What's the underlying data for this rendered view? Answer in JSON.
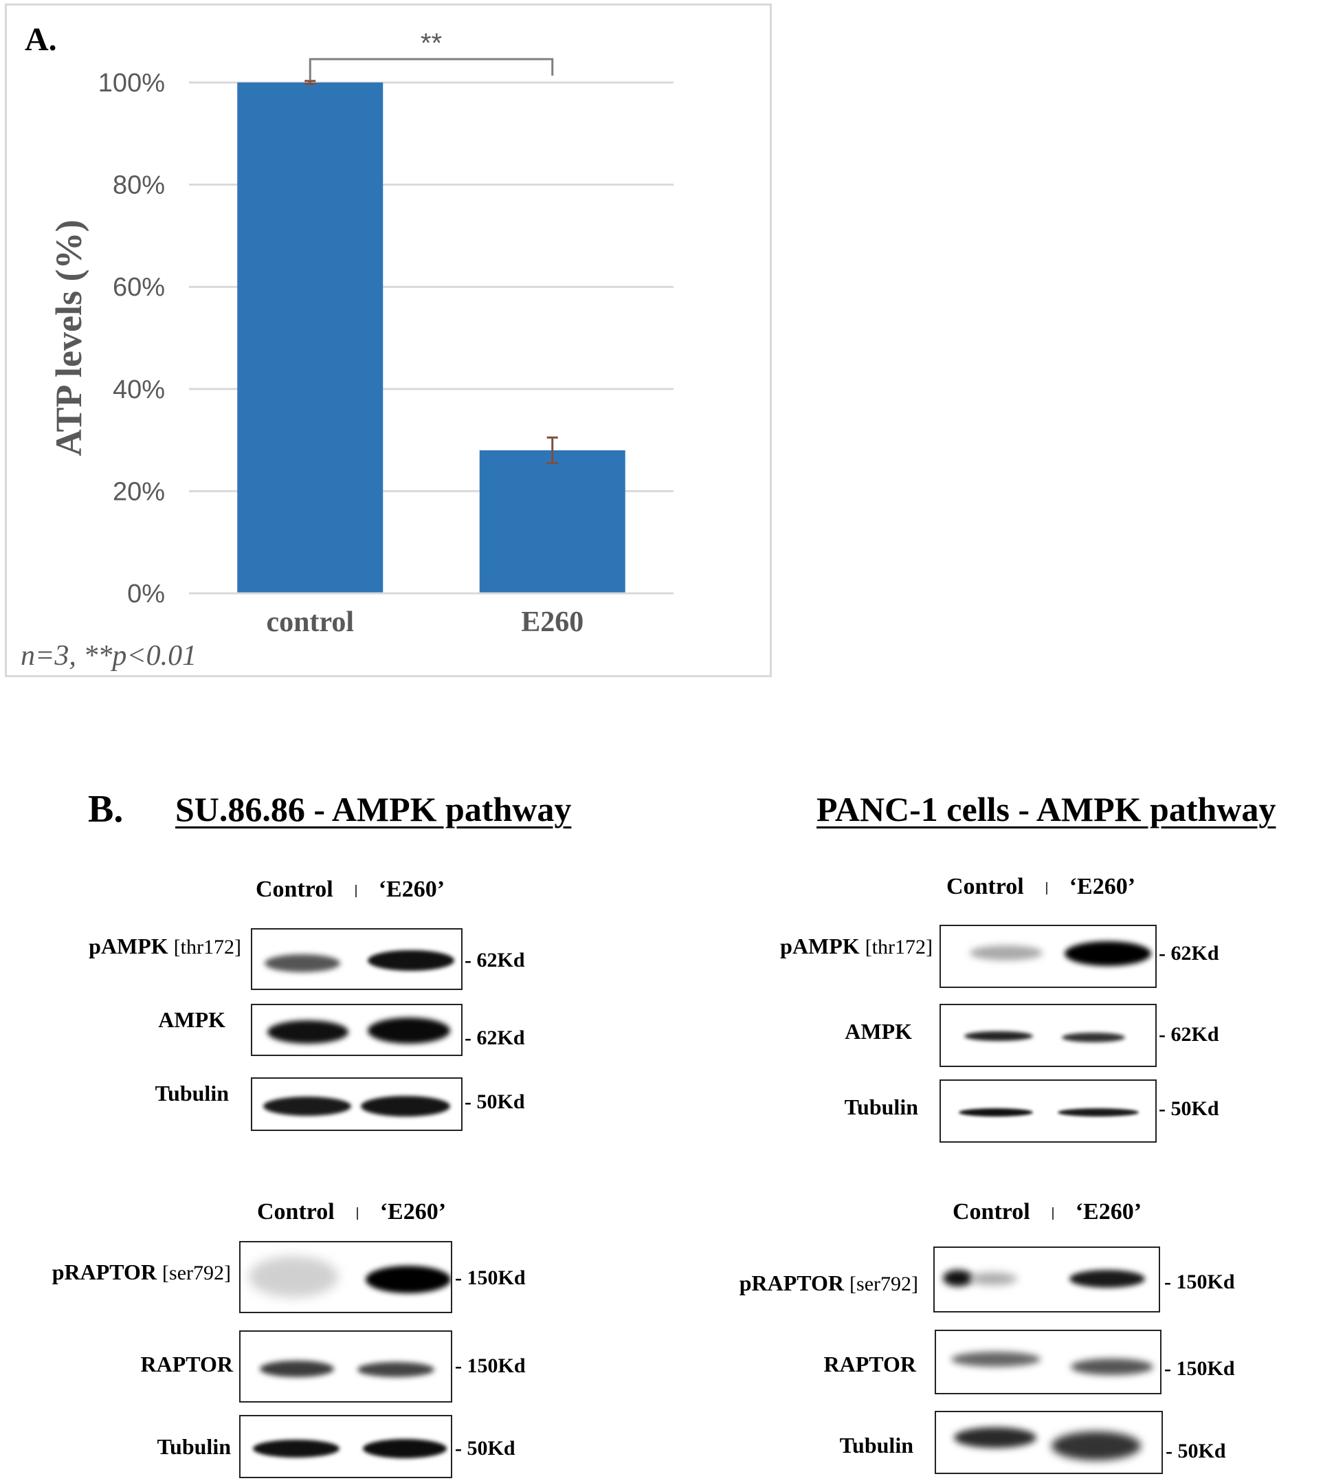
{
  "panel_a": {
    "label": "A.",
    "footnote": "n=3, **p<0.01",
    "significance": "**"
  },
  "chart_data": {
    "type": "bar",
    "categories": [
      "control",
      "E260"
    ],
    "values": [
      100,
      28
    ],
    "error": [
      0.3,
      2.5
    ],
    "ylabel": "ATP levels (%)",
    "ylim": [
      0,
      100
    ],
    "yticks": [
      "0%",
      "20%",
      "40%",
      "60%",
      "80%",
      "100%"
    ],
    "bar_color": "#2e75b6",
    "grid": true
  },
  "panel_b": {
    "label": "B.",
    "left": {
      "title": "SU.86.86 - AMPK pathway",
      "top_header": {
        "control": "Control",
        "e260": "‘E260’"
      },
      "top_blots": [
        {
          "protein": "pAMPK",
          "site": "[thr172]",
          "mw": "- 62Kd"
        },
        {
          "protein": "AMPK",
          "site": "",
          "mw": "- 62Kd"
        },
        {
          "protein": "Tubulin",
          "site": "",
          "mw": "- 50Kd"
        }
      ],
      "bottom_header": {
        "control": "Control",
        "e260": "‘E260’"
      },
      "bottom_blots": [
        {
          "protein": "pRAPTOR",
          "site": "[ser792]",
          "mw": "- 150Kd"
        },
        {
          "protein": "RAPTOR",
          "site": "",
          "mw": "- 150Kd"
        },
        {
          "protein": "Tubulin",
          "site": "",
          "mw": "- 50Kd"
        }
      ]
    },
    "right": {
      "title": "PANC-1 cells - AMPK pathway",
      "top_header": {
        "control": "Control",
        "e260": "‘E260’"
      },
      "top_blots": [
        {
          "protein": "pAMPK",
          "site": "[thr172]",
          "mw": "- 62Kd"
        },
        {
          "protein": "AMPK",
          "site": "",
          "mw": "- 62Kd"
        },
        {
          "protein": "Tubulin",
          "site": "",
          "mw": "- 50Kd"
        }
      ],
      "bottom_header": {
        "control": "Control",
        "e260": "‘E260’"
      },
      "bottom_blots": [
        {
          "protein": "pRAPTOR",
          "site": "[ser792]",
          "mw": "- 150Kd"
        },
        {
          "protein": "RAPTOR",
          "site": "",
          "mw": "- 150Kd"
        },
        {
          "protein": "Tubulin",
          "site": "",
          "mw": "- 50Kd"
        }
      ]
    }
  }
}
